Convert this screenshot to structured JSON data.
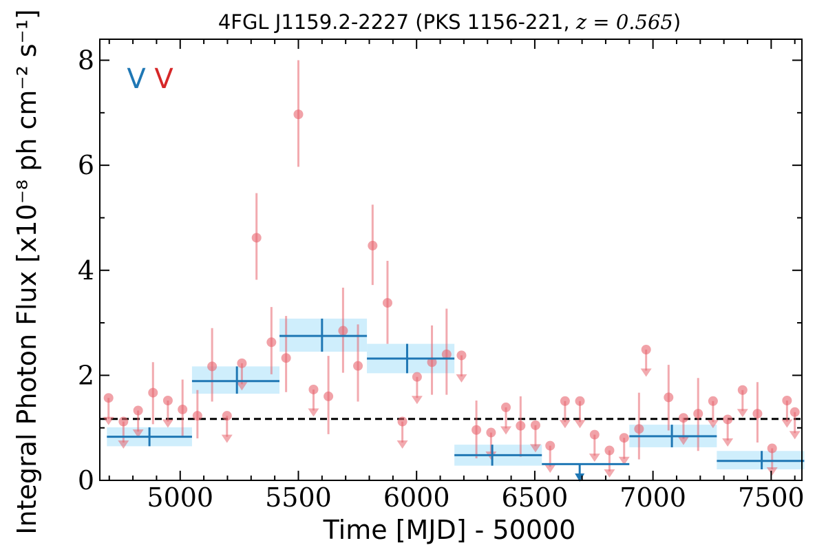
{
  "chart_data": {
    "type": "scatter",
    "title": "4FGL J1159.2-2227 (PKS 1156-221, z = 0.565)",
    "title_parts": {
      "main": "4FGL J1159.2-2227 (PKS 1156-221, ",
      "math": "z = 0.565",
      "close": ")"
    },
    "xlabel": "Time [MJD] - 50000",
    "ylabel": "Integral Photon Flux [x10⁻⁸ ph cm⁻² s⁻¹]",
    "xlim": [
      4660,
      7630
    ],
    "ylim": [
      0,
      8.4
    ],
    "x_ticks": [
      5000,
      5500,
      6000,
      6500,
      7000,
      7500
    ],
    "y_ticks": [
      0,
      2,
      4,
      6,
      8
    ],
    "grid": false,
    "reference_level": 1.17,
    "markers": [
      {
        "text": "V",
        "color": "#1f77b4"
      },
      {
        "text": "V",
        "color": "#d62728"
      }
    ],
    "colors": {
      "fine_bins": "#e8646e",
      "coarse_bins": "#1f77b4",
      "coarse_band": "#cfeefc",
      "reference": "#000000"
    },
    "series": [
      {
        "type": "binned",
        "points": [
          {
            "x": 4697,
            "y": 1.57,
            "ul": true
          },
          {
            "x": 4760,
            "y": 1.12,
            "ul": true
          },
          {
            "x": 4822,
            "y": 1.33,
            "ul": true
          },
          {
            "x": 4885,
            "y": 1.67,
            "lo": 1.07,
            "hi": 2.25
          },
          {
            "x": 4948,
            "y": 1.52,
            "ul": true
          },
          {
            "x": 5010,
            "y": 1.35,
            "lo": 0.82,
            "hi": 1.92
          },
          {
            "x": 5073,
            "y": 1.23,
            "lo": 0.8,
            "hi": 1.72
          },
          {
            "x": 5135,
            "y": 2.17,
            "lo": 1.5,
            "hi": 2.9
          },
          {
            "x": 5198,
            "y": 1.23,
            "ul": true
          },
          {
            "x": 5261,
            "y": 2.23,
            "ul": true
          },
          {
            "x": 5323,
            "y": 4.62,
            "lo": 3.82,
            "hi": 5.47
          },
          {
            "x": 5386,
            "y": 2.63,
            "lo": 2.02,
            "hi": 3.3
          },
          {
            "x": 5448,
            "y": 2.33,
            "lo": 1.68,
            "hi": 3.13
          },
          {
            "x": 5500,
            "y": 6.97,
            "lo": 5.97,
            "hi": 8.0
          },
          {
            "x": 5564,
            "y": 1.73,
            "ul": true
          },
          {
            "x": 5627,
            "y": 1.6,
            "lo": 0.88,
            "hi": 2.37
          },
          {
            "x": 5689,
            "y": 2.85,
            "lo": 2.05,
            "hi": 3.67
          },
          {
            "x": 5752,
            "y": 2.18,
            "lo": 1.5,
            "hi": 2.97
          },
          {
            "x": 5814,
            "y": 4.47,
            "lo": 3.72,
            "hi": 5.25
          },
          {
            "x": 5877,
            "y": 3.38,
            "lo": 2.6,
            "hi": 4.18
          },
          {
            "x": 5940,
            "y": 1.12,
            "ul": true
          },
          {
            "x": 6002,
            "y": 1.97,
            "ul": true
          },
          {
            "x": 6065,
            "y": 2.25,
            "lo": 1.63,
            "hi": 2.95
          },
          {
            "x": 6127,
            "y": 2.4,
            "lo": 1.63,
            "hi": 3.27
          },
          {
            "x": 6190,
            "y": 2.38,
            "ul": true
          },
          {
            "x": 6253,
            "y": 0.96,
            "lo": 0.42,
            "hi": 1.52
          },
          {
            "x": 6315,
            "y": 0.91,
            "ul": true
          },
          {
            "x": 6378,
            "y": 1.39,
            "ul": true
          },
          {
            "x": 6440,
            "y": 1.04,
            "lo": 0.45,
            "hi": 1.6
          },
          {
            "x": 6503,
            "y": 1.05,
            "ul": true
          },
          {
            "x": 6565,
            "y": 0.66,
            "ul": true
          },
          {
            "x": 6628,
            "y": 1.51,
            "ul": true
          },
          {
            "x": 6691,
            "y": 1.51,
            "ul": true
          },
          {
            "x": 6753,
            "y": 0.87,
            "ul": true
          },
          {
            "x": 6816,
            "y": 0.57,
            "ul": true
          },
          {
            "x": 6878,
            "y": 0.81,
            "ul": true
          },
          {
            "x": 6941,
            "y": 0.98,
            "lo": 0.4,
            "hi": 1.67
          },
          {
            "x": 6971,
            "y": 2.49,
            "ul": true
          },
          {
            "x": 7066,
            "y": 1.58,
            "lo": 0.95,
            "hi": 2.2
          },
          {
            "x": 7129,
            "y": 1.19,
            "ul": true
          },
          {
            "x": 7191,
            "y": 1.27,
            "lo": 0.56,
            "hi": 1.95
          },
          {
            "x": 7254,
            "y": 1.51,
            "ul": true
          },
          {
            "x": 7316,
            "y": 1.16,
            "ul": true
          },
          {
            "x": 7379,
            "y": 1.72,
            "ul": true
          },
          {
            "x": 7442,
            "y": 1.27,
            "lo": 0.72,
            "hi": 1.87
          },
          {
            "x": 7504,
            "y": 0.61,
            "ul": true
          },
          {
            "x": 7567,
            "y": 1.52,
            "ul": true
          },
          {
            "x": 7600,
            "y": 1.3,
            "ul": true
          }
        ]
      },
      {
        "type": "binned",
        "bins": [
          {
            "x0": 4690,
            "x1": 5050,
            "xc": 4870,
            "y": 0.83,
            "lo": 0.65,
            "hi": 1.01
          },
          {
            "x0": 5050,
            "x1": 5420,
            "xc": 5240,
            "y": 1.89,
            "lo": 1.65,
            "hi": 2.17
          },
          {
            "x0": 5420,
            "x1": 5790,
            "xc": 5600,
            "y": 2.75,
            "lo": 2.45,
            "hi": 3.08
          },
          {
            "x0": 5790,
            "x1": 6160,
            "xc": 5960,
            "y": 2.32,
            "lo": 2.04,
            "hi": 2.6
          },
          {
            "x0": 6160,
            "x1": 6530,
            "xc": 6320,
            "y": 0.48,
            "lo": 0.28,
            "hi": 0.68
          },
          {
            "x0": 6530,
            "x1": 6900,
            "xc": 6690,
            "y": 0.31,
            "ul": true
          },
          {
            "x0": 6900,
            "x1": 7270,
            "xc": 7080,
            "y": 0.84,
            "lo": 0.63,
            "hi": 1.06
          },
          {
            "x0": 7270,
            "x1": 7640,
            "xc": 7460,
            "y": 0.37,
            "lo": 0.21,
            "hi": 0.56
          }
        ]
      }
    ]
  }
}
